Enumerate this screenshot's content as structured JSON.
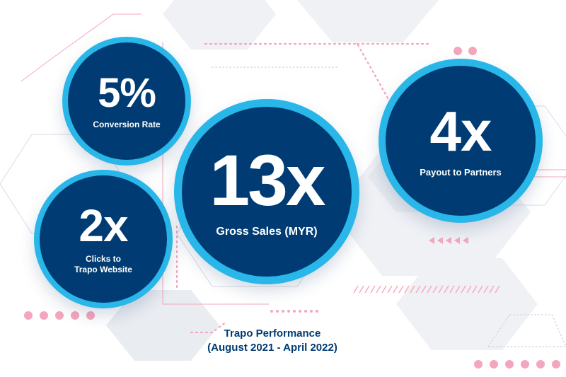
{
  "stats": [
    {
      "value": "5%",
      "label": "Conversion Rate"
    },
    {
      "value": "2x",
      "label_line1": "Clicks to",
      "label_line2": "Trapo Website"
    },
    {
      "value": "13x",
      "label": "Gross Sales (MYR)"
    },
    {
      "value": "4x",
      "label": "Payout to Partners"
    }
  ],
  "caption": {
    "title": "Trapo Performance",
    "period": "(August 2021 - April 2022)"
  },
  "colors": {
    "circle_fill": "#003c73",
    "circle_ring": "#29b6e8",
    "accent_pink": "#f4a7bc",
    "text_white": "#ffffff"
  }
}
